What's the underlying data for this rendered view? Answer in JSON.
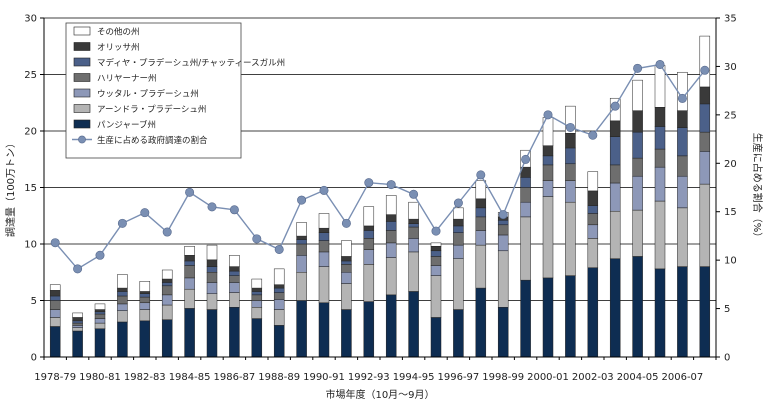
{
  "chart_data": {
    "type": "bar",
    "stacked": true,
    "categories": [
      "1978-79",
      "1979-80",
      "1980-81",
      "1981-82",
      "1982-83",
      "1983-84",
      "1984-85",
      "1985-86",
      "1986-87",
      "1987-88",
      "1988-89",
      "1989-90",
      "1990-91",
      "1991-92",
      "1992-93",
      "1993-94",
      "1994-95",
      "1995-96",
      "1996-97",
      "1997-98",
      "1998-99",
      "1999-00",
      "2000-01",
      "2001-02",
      "2002-03",
      "2003-04",
      "2004-05",
      "2005-06",
      "2006-07",
      "2007-08"
    ],
    "x_tick_labels": [
      "1978-79",
      "1980-81",
      "1982-83",
      "1984-85",
      "1986-87",
      "1988-89",
      "1990-91",
      "1992-93",
      "1994-95",
      "1996-97",
      "1998-99",
      "2000-01",
      "2002-03",
      "2004-05",
      "2006-07"
    ],
    "series": [
      {
        "name": "パンジャーブ州",
        "color": "#0e2d52",
        "values": [
          2.7,
          2.3,
          2.5,
          3.1,
          3.2,
          3.3,
          4.3,
          4.2,
          4.4,
          3.4,
          2.8,
          5.0,
          4.8,
          4.2,
          4.9,
          5.5,
          5.8,
          3.5,
          4.2,
          6.1,
          4.4,
          6.8,
          7.0,
          7.2,
          7.9,
          8.7,
          8.9,
          7.8,
          8.0,
          8.0
        ]
      },
      {
        "name": "アーンドラ・プラデーシュ州",
        "color": "#b4b4b4",
        "values": [
          0.8,
          0.3,
          0.5,
          1.0,
          1.0,
          1.3,
          1.7,
          1.4,
          1.3,
          1.0,
          1.4,
          2.5,
          3.2,
          2.3,
          3.3,
          3.3,
          3.5,
          3.7,
          4.5,
          3.8,
          5.0,
          5.6,
          7.2,
          6.5,
          2.6,
          4.2,
          4.1,
          6.0,
          5.2,
          7.3
        ]
      },
      {
        "name": "ウッタル・プラデーシュ州",
        "color": "#8d98b8",
        "values": [
          0.7,
          0.2,
          0.4,
          0.6,
          0.6,
          0.9,
          1.0,
          1.0,
          0.9,
          0.6,
          0.9,
          1.5,
          1.3,
          1.0,
          1.3,
          1.3,
          1.2,
          0.9,
          1.2,
          1.3,
          1.4,
          1.3,
          1.4,
          1.9,
          1.2,
          2.5,
          3.0,
          3.0,
          2.8,
          2.9
        ]
      },
      {
        "name": "ハリヤーナー州",
        "color": "#6e6e6e",
        "values": [
          0.8,
          0.2,
          0.4,
          0.7,
          0.5,
          0.8,
          1.1,
          0.9,
          0.6,
          0.5,
          0.6,
          1.0,
          1.0,
          0.7,
          1.0,
          1.1,
          1.0,
          0.8,
          1.1,
          1.2,
          0.9,
          1.3,
          1.4,
          1.5,
          1.0,
          1.6,
          1.6,
          1.6,
          1.8,
          1.7
        ]
      },
      {
        "name": "マディヤ・プラデーシュ州/チャッティースガル州",
        "color": "#4b6089",
        "values": [
          0.4,
          0.2,
          0.2,
          0.4,
          0.3,
          0.3,
          0.4,
          0.5,
          0.4,
          0.3,
          0.4,
          0.4,
          0.7,
          0.3,
          0.7,
          0.8,
          0.3,
          0.5,
          0.6,
          0.8,
          0.4,
          0.9,
          0.8,
          1.4,
          0.7,
          2.5,
          2.3,
          2.0,
          2.5,
          2.5
        ]
      },
      {
        "name": "オリッサ州",
        "color": "#3a3a3a",
        "values": [
          0.5,
          0.3,
          0.2,
          0.3,
          0.2,
          0.3,
          0.5,
          0.6,
          0.4,
          0.3,
          0.3,
          0.3,
          0.4,
          0.4,
          0.4,
          0.6,
          0.4,
          0.4,
          0.6,
          0.8,
          0.3,
          0.9,
          0.9,
          1.3,
          1.3,
          1.4,
          1.9,
          1.7,
          1.5,
          1.5
        ]
      },
      {
        "name": "その他の州",
        "color": "#ffffff",
        "values": [
          0.5,
          0.4,
          0.5,
          1.2,
          0.9,
          0.8,
          0.8,
          1.3,
          1.0,
          0.8,
          1.4,
          1.2,
          1.3,
          1.4,
          1.7,
          1.7,
          1.5,
          0.3,
          1.0,
          1.6,
          0.4,
          1.5,
          2.5,
          2.4,
          1.7,
          2.0,
          2.7,
          3.7,
          3.4,
          4.5
        ]
      }
    ],
    "line": {
      "name": "生産に占める政府調達の割合",
      "color": "#7a8fb3",
      "axis": "right",
      "values": [
        11.8,
        9.1,
        10.5,
        13.8,
        14.9,
        12.9,
        17.0,
        15.5,
        15.2,
        12.2,
        11.1,
        16.2,
        17.2,
        13.8,
        18.0,
        17.8,
        16.8,
        13.0,
        15.9,
        18.8,
        14.7,
        20.4,
        25.0,
        23.7,
        22.9,
        25.9,
        29.8,
        30.2,
        26.7,
        29.6
      ]
    },
    "xlabel": "市場年度（10月～9月）",
    "ylabel": "調達量（100万トン）",
    "ylabel_right": "生産に占める割合（%）",
    "ylim": [
      0,
      30
    ],
    "ylim_right": [
      0,
      35
    ],
    "yticks": [
      0,
      5,
      10,
      15,
      20,
      25,
      30
    ],
    "yticks_right": [
      0,
      5,
      10,
      15,
      20,
      25,
      30,
      35
    ],
    "grid": true,
    "legend_position": "top-left"
  }
}
